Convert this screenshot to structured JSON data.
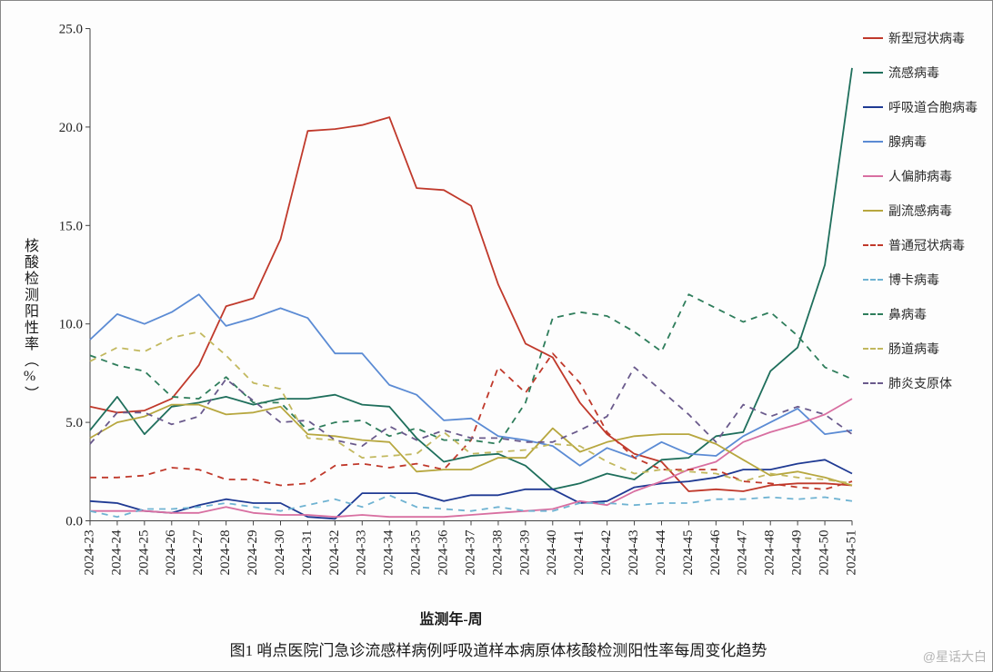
{
  "chart": {
    "type": "line",
    "title": null,
    "caption": "图1    哨点医院门急诊流感样病例呼吸道样本病原体核酸检测阳性率每周变化趋势",
    "ylabel": "核酸检测阳性率（%）",
    "xlabel": "监测年-周",
    "background_color": "#fdfdfd",
    "axis_color": "#444444",
    "tick_fontsize": 15,
    "label_fontsize": 16,
    "caption_fontsize": 17,
    "ylim": [
      0,
      25
    ],
    "ytick_step": 5,
    "yticks": [
      "0.0",
      "5.0",
      "10.0",
      "15.0",
      "20.0",
      "25.0"
    ],
    "x_categories": [
      "2024-23",
      "2024-24",
      "2024-25",
      "2024-26",
      "2024-27",
      "2024-28",
      "2024-29",
      "2024-30",
      "2024-31",
      "2024-32",
      "2024-33",
      "2024-34",
      "2024-35",
      "2024-36",
      "2024-37",
      "2024-38",
      "2024-39",
      "2024-40",
      "2024-41",
      "2024-42",
      "2024-43",
      "2024-44",
      "2024-45",
      "2024-46",
      "2024-47",
      "2024-48",
      "2024-49",
      "2024-50",
      "2024-51"
    ],
    "line_width": 1.8,
    "series": [
      {
        "name": "新型冠状病毒",
        "color": "#c0392b",
        "dash": "solid",
        "values": [
          5.8,
          5.5,
          5.6,
          6.2,
          7.9,
          10.9,
          11.3,
          14.3,
          19.8,
          19.9,
          20.1,
          20.5,
          16.9,
          16.8,
          16.0,
          12.0,
          9.0,
          8.3,
          6.0,
          4.4,
          3.4,
          3.0,
          1.5,
          1.6,
          1.5,
          1.8,
          1.9,
          1.9,
          1.8
        ]
      },
      {
        "name": "流感病毒",
        "color": "#1f6f5c",
        "dash": "solid",
        "values": [
          4.6,
          6.3,
          4.4,
          5.8,
          6.0,
          6.3,
          5.9,
          6.2,
          6.2,
          6.4,
          5.9,
          5.8,
          4.2,
          3.0,
          3.3,
          3.4,
          2.8,
          1.6,
          1.9,
          2.4,
          2.1,
          3.1,
          3.2,
          4.3,
          4.5,
          7.6,
          8.8,
          13.0,
          23.0
        ]
      },
      {
        "name": "呼吸道合胞病毒",
        "color": "#1f3a93",
        "dash": "solid",
        "values": [
          1.0,
          0.9,
          0.5,
          0.4,
          0.8,
          1.1,
          0.9,
          0.9,
          0.2,
          0.1,
          1.4,
          1.4,
          1.4,
          1.0,
          1.3,
          1.3,
          1.6,
          1.6,
          0.9,
          1.0,
          1.7,
          1.9,
          2.0,
          2.2,
          2.6,
          2.6,
          2.9,
          3.1,
          2.4
        ]
      },
      {
        "name": "腺病毒",
        "color": "#5b8bd4",
        "dash": "solid",
        "values": [
          9.2,
          10.5,
          10.0,
          10.6,
          11.5,
          9.9,
          10.3,
          10.8,
          10.3,
          8.5,
          8.5,
          6.9,
          6.4,
          5.1,
          5.2,
          4.3,
          4.1,
          3.8,
          2.8,
          3.7,
          3.2,
          4.0,
          3.4,
          3.3,
          4.3,
          5.0,
          5.7,
          4.4,
          4.6
        ]
      },
      {
        "name": "人偏肺病毒",
        "color": "#d86fa1",
        "dash": "solid",
        "values": [
          0.5,
          0.5,
          0.5,
          0.4,
          0.4,
          0.7,
          0.4,
          0.3,
          0.3,
          0.2,
          0.3,
          0.2,
          0.2,
          0.2,
          0.3,
          0.4,
          0.5,
          0.6,
          1.0,
          0.8,
          1.5,
          2.0,
          2.6,
          3.0,
          4.0,
          4.5,
          4.9,
          5.4,
          6.2
        ]
      },
      {
        "name": "副流感病毒",
        "color": "#b7a73f",
        "dash": "solid",
        "values": [
          4.2,
          5.0,
          5.3,
          5.9,
          5.9,
          5.4,
          5.5,
          5.8,
          4.4,
          4.3,
          4.1,
          4.0,
          2.5,
          2.6,
          2.6,
          3.2,
          3.2,
          4.7,
          3.5,
          4.0,
          4.3,
          4.4,
          4.4,
          3.9,
          3.1,
          2.3,
          2.5,
          2.2,
          1.8
        ]
      },
      {
        "name": "普通冠状病毒",
        "color": "#c0392b",
        "dash": "dashed",
        "values": [
          2.2,
          2.2,
          2.3,
          2.7,
          2.6,
          2.1,
          2.1,
          1.8,
          1.9,
          2.8,
          2.9,
          2.7,
          2.9,
          2.6,
          4.1,
          7.8,
          6.5,
          8.5,
          7.0,
          4.5,
          3.2,
          2.6,
          2.6,
          2.6,
          2.0,
          1.9,
          1.7,
          1.6,
          2.0
        ]
      },
      {
        "name": "博卡病毒",
        "color": "#6fb3d2",
        "dash": "dashed",
        "values": [
          0.5,
          0.2,
          0.6,
          0.6,
          0.7,
          0.9,
          0.7,
          0.5,
          0.8,
          1.1,
          0.7,
          1.3,
          0.7,
          0.6,
          0.5,
          0.7,
          0.5,
          0.5,
          0.9,
          0.9,
          0.8,
          0.9,
          0.9,
          1.1,
          1.1,
          1.2,
          1.1,
          1.2,
          1.0
        ]
      },
      {
        "name": "鼻病毒",
        "color": "#2e7d5b",
        "dash": "dashed",
        "values": [
          8.4,
          7.9,
          7.6,
          6.3,
          6.2,
          7.3,
          6.0,
          6.0,
          4.6,
          5.0,
          5.1,
          4.3,
          4.7,
          4.1,
          4.1,
          3.9,
          6.0,
          10.3,
          10.6,
          10.4,
          9.6,
          8.6,
          11.5,
          10.8,
          10.1,
          10.6,
          9.4,
          7.8,
          7.2
        ]
      },
      {
        "name": "肠道病毒",
        "color": "#c2b85e",
        "dash": "dashed",
        "values": [
          8.1,
          8.8,
          8.6,
          9.3,
          9.6,
          8.4,
          7.0,
          6.7,
          4.2,
          4.1,
          3.2,
          3.3,
          3.4,
          4.5,
          3.4,
          3.5,
          3.6,
          3.9,
          3.8,
          3.0,
          2.4,
          2.6,
          2.5,
          2.4,
          2.0,
          2.4,
          2.2,
          2.1,
          1.9
        ]
      },
      {
        "name": "肺炎支原体",
        "color": "#6a5a8c",
        "dash": "dashed",
        "values": [
          3.9,
          5.5,
          5.5,
          4.9,
          5.3,
          7.2,
          6.1,
          5.0,
          5.1,
          4.1,
          3.8,
          4.8,
          4.1,
          4.6,
          4.2,
          4.2,
          4.0,
          4.0,
          4.6,
          5.3,
          7.8,
          6.6,
          5.4,
          4.0,
          5.9,
          5.3,
          5.8,
          5.4,
          4.4
        ]
      }
    ],
    "legend": {
      "position": "right",
      "fontsize": 14,
      "swatch_width": 22
    },
    "watermark": "@星话大白"
  }
}
